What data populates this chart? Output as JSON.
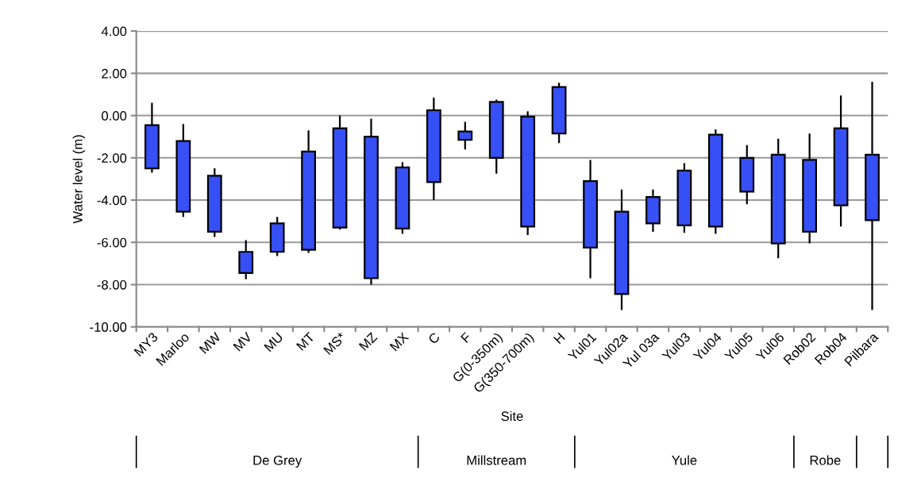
{
  "chart_data": {
    "type": "candlestick",
    "xlabel": "Site",
    "ylabel": "Water level (m)",
    "color": "#3650f5",
    "categories": [
      "MY3",
      "Marloo",
      "MW",
      "MV",
      "MU",
      "MT",
      "MS*",
      "MZ",
      "MX",
      "C",
      "F",
      "G(0-350m)",
      "G(350-700m)",
      "H",
      "Yul01",
      "Yul02a",
      "Yul 03a",
      "Yul03",
      "Yul04",
      "Yul05",
      "Yul06",
      "Rob02",
      "Rob04",
      "Pilbara"
    ],
    "ohlc": [
      [
        -2.5,
        0.6,
        -2.7,
        -0.45
      ],
      [
        -4.55,
        -0.4,
        -4.8,
        -1.2
      ],
      [
        -5.5,
        -2.5,
        -5.75,
        -2.85
      ],
      [
        -7.45,
        -5.9,
        -7.75,
        -6.45
      ],
      [
        -6.45,
        -4.8,
        -6.65,
        -5.1
      ],
      [
        -6.35,
        -0.7,
        -6.5,
        -1.7
      ],
      [
        -5.3,
        0.0,
        -5.4,
        -0.6
      ],
      [
        -7.7,
        -0.15,
        -8.0,
        -1.0
      ],
      [
        -5.35,
        -2.2,
        -5.6,
        -2.45
      ],
      [
        -3.15,
        0.85,
        -4.0,
        0.25
      ],
      [
        -1.15,
        -0.3,
        -1.6,
        -0.75
      ],
      [
        -2.0,
        0.75,
        -2.75,
        0.65
      ],
      [
        -5.25,
        0.2,
        -5.65,
        -0.05
      ],
      [
        -0.85,
        1.55,
        -1.3,
        1.35
      ],
      [
        -6.25,
        -2.1,
        -7.7,
        -3.1
      ],
      [
        -8.45,
        -3.5,
        -9.2,
        -4.55
      ],
      [
        -5.1,
        -3.5,
        -5.5,
        -3.85
      ],
      [
        -5.2,
        -2.25,
        -5.55,
        -2.6
      ],
      [
        -5.25,
        -0.65,
        -5.6,
        -0.9
      ],
      [
        -3.6,
        -1.4,
        -4.2,
        -2.0
      ],
      [
        -6.05,
        -1.1,
        -6.75,
        -1.85
      ],
      [
        -5.5,
        -0.85,
        -6.05,
        -2.1
      ],
      [
        -4.25,
        0.95,
        -5.25,
        -0.6
      ],
      [
        -4.95,
        1.6,
        -9.2,
        -1.85
      ]
    ],
    "ylim": [
      -10,
      4
    ],
    "yticks": [
      {
        "value": -10,
        "label": "-10.00"
      },
      {
        "value": -8,
        "label": "-8.00"
      },
      {
        "value": -6,
        "label": "-6.00"
      },
      {
        "value": -4,
        "label": "-4.00"
      },
      {
        "value": -2,
        "label": "-2.00"
      },
      {
        "value": 0,
        "label": "0.00"
      },
      {
        "value": 2,
        "label": "2.00"
      },
      {
        "value": 4,
        "label": "4.00"
      }
    ],
    "grid": "y",
    "annotations": [
      "De Grey",
      "Millstream",
      "Yule",
      "Robe"
    ]
  }
}
